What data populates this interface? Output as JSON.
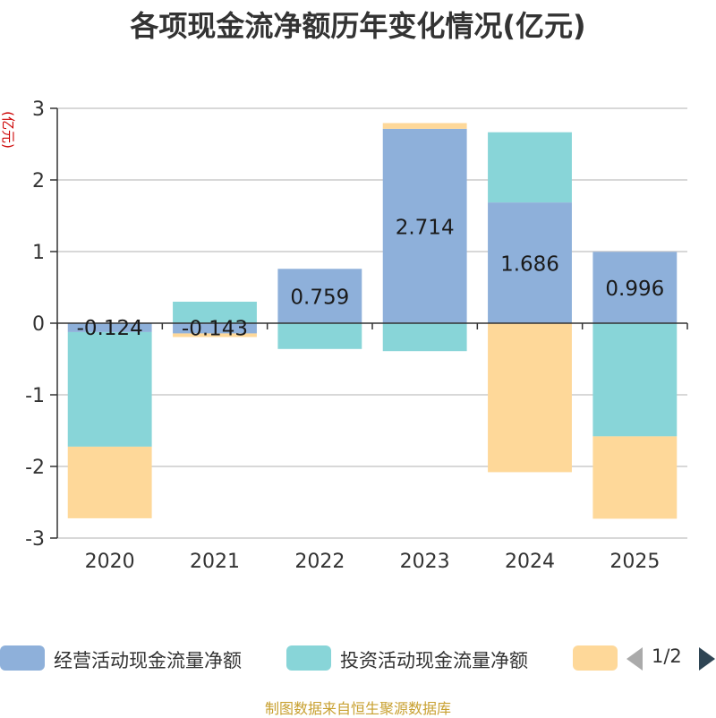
{
  "chart_data": {
    "type": "bar",
    "stacked": true,
    "title": "各项现金流净额历年变化情况(亿元)",
    "ylabel": "(亿元)",
    "ylim": [
      -3,
      3
    ],
    "yticks": [
      3,
      2,
      1,
      0,
      -1,
      -2,
      -3
    ],
    "categories": [
      "2020",
      "2021",
      "2022",
      "2023",
      "2024",
      "2025"
    ],
    "series": [
      {
        "name": "经营活动现金流量净额",
        "color": "#8eb0da",
        "values": [
          -0.124,
          -0.143,
          0.759,
          2.714,
          1.686,
          0.996
        ],
        "show_labels": true
      },
      {
        "name": "投资活动现金流量净额",
        "color": "#88d5d8",
        "values": [
          -1.6,
          0.3,
          -0.36,
          -0.39,
          0.98,
          -1.58
        ],
        "show_labels": false
      },
      {
        "name": "",
        "color": "#fed899",
        "values": [
          -1.0,
          -0.05,
          0,
          0.08,
          -2.08,
          -1.15
        ],
        "show_labels": false
      }
    ],
    "grid": true,
    "legend_position": "bottom"
  },
  "legend": {
    "page": "1/2"
  },
  "source": "制图数据来自恒生聚源数据库"
}
